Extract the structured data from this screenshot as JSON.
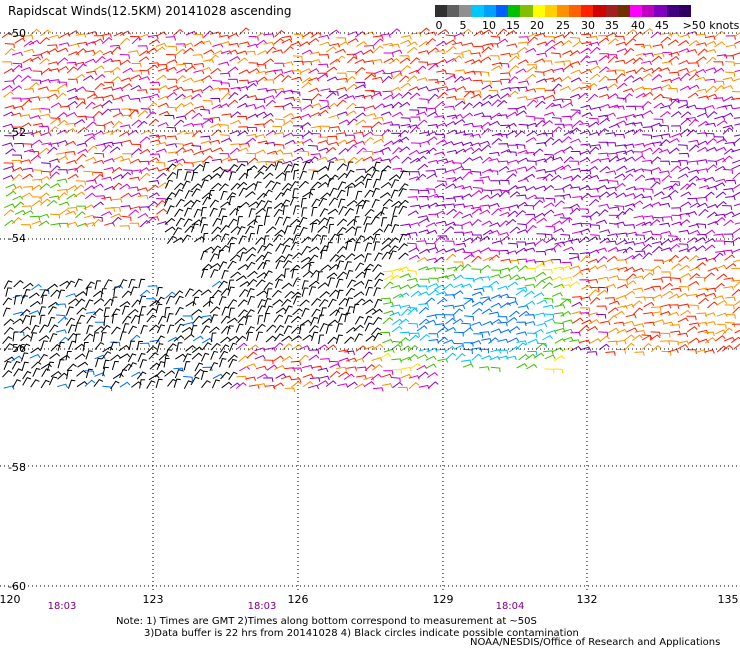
{
  "title": "Rapidscat Winds(12.5KM) 20141028 ascending",
  "legend": {
    "colors": [
      "#303030",
      "#606060",
      "#909090",
      "#00c8ff",
      "#00a0ff",
      "#0060ff",
      "#00c000",
      "#80c000",
      "#ffff00",
      "#ffd000",
      "#ff9000",
      "#ff6000",
      "#ff2000",
      "#d00000",
      "#a02020",
      "#703000",
      "#ff00ff",
      "#c000c0",
      "#8000c0",
      "#400080",
      "#300060"
    ],
    "ticks": [
      "0",
      "5",
      "10",
      "15",
      "20",
      "25",
      "30",
      "35",
      "40",
      "45",
      ">50 knots"
    ]
  },
  "lat_labels": [
    "-50",
    "-52",
    "-54",
    "-56",
    "-58",
    "-60"
  ],
  "lon_labels": [
    "120",
    "123",
    "126",
    "129",
    "132",
    "135"
  ],
  "time_labels": [
    "18:03",
    "18:03",
    "18:04"
  ],
  "notes": [
    "Note: 1) Times are GMT 2)Times along bottom correspond to measurement at ~50S",
    "3)Data buffer is 22 hrs from 20141028 4) Black circles indicate possible contamination"
  ],
  "credit": "NOAA/NESDIS/Office of Research and Applications",
  "colors": {
    "grid": "#000000",
    "time_text": "#800080"
  }
}
